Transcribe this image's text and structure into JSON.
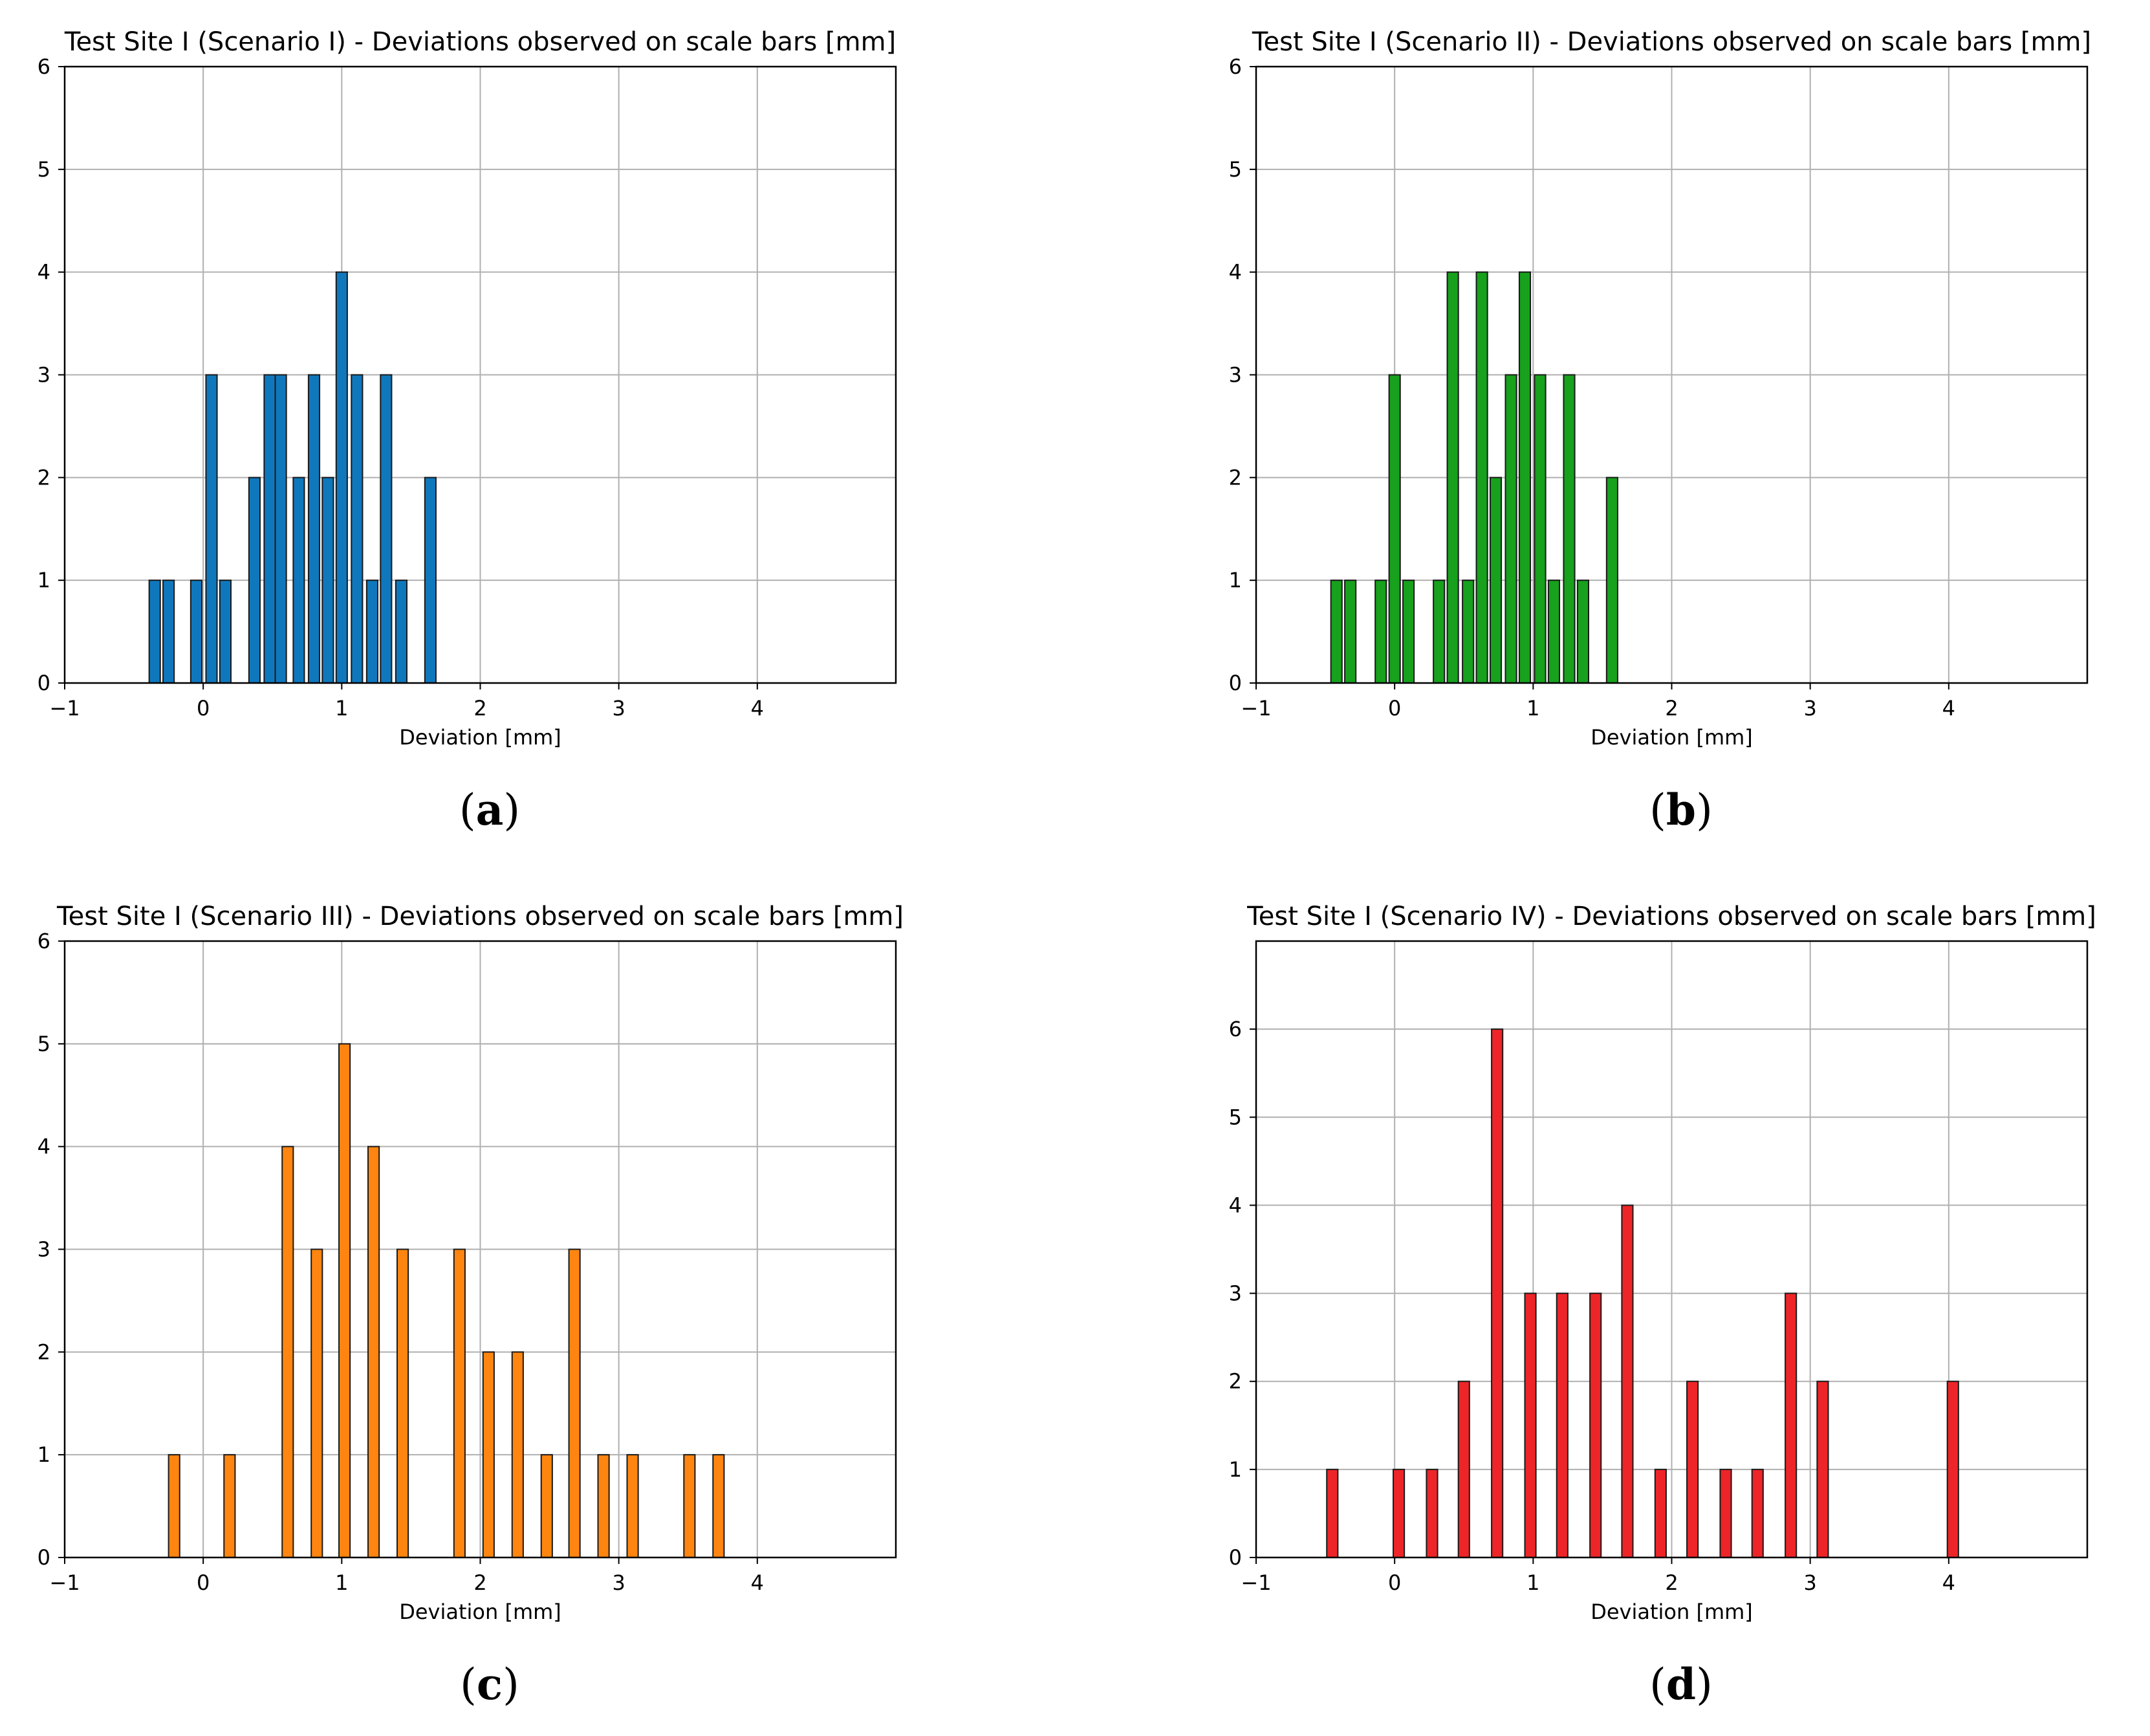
{
  "figure": {
    "panels": [
      {
        "caption_letter": "a"
      },
      {
        "caption_letter": "b"
      },
      {
        "caption_letter": "c"
      },
      {
        "caption_letter": "d"
      }
    ]
  },
  "chart_data": [
    {
      "type": "bar",
      "title": "Test Site I (Scenario I) - Deviations observed on scale bars [mm]",
      "xlabel": "Deviation [mm]",
      "ylabel": "",
      "xlim": [
        -1,
        5
      ],
      "ylim": [
        0,
        6
      ],
      "xticks": [
        -1,
        0,
        1,
        2,
        3,
        4
      ],
      "xtick_labels": [
        "−1",
        "0",
        "1",
        "2",
        "3",
        "4"
      ],
      "yticks": [
        0,
        1,
        2,
        3,
        4,
        5,
        6
      ],
      "ytick_labels": [
        "0",
        "1",
        "2",
        "3",
        "4",
        "5",
        "6"
      ],
      "grid": true,
      "bar_width": 0.08,
      "color": "#0f78bd",
      "x": [
        -0.35,
        -0.25,
        -0.05,
        0.06,
        0.16,
        0.37,
        0.48,
        0.56,
        0.69,
        0.8,
        0.9,
        1.0,
        1.11,
        1.22,
        1.32,
        1.43,
        1.64
      ],
      "values": [
        1,
        1,
        1,
        3,
        1,
        2,
        3,
        3,
        2,
        3,
        2,
        4,
        3,
        1,
        3,
        1,
        2
      ]
    },
    {
      "type": "bar",
      "title": "Test Site I (Scenario II) - Deviations observed on scale bars [mm]",
      "xlabel": "Deviation [mm]",
      "ylabel": "",
      "xlim": [
        -1,
        5
      ],
      "ylim": [
        0,
        6
      ],
      "xticks": [
        -1,
        0,
        1,
        2,
        3,
        4
      ],
      "xtick_labels": [
        "−1",
        "0",
        "1",
        "2",
        "3",
        "4"
      ],
      "yticks": [
        0,
        1,
        2,
        3,
        4,
        5,
        6
      ],
      "ytick_labels": [
        "0",
        "1",
        "2",
        "3",
        "4",
        "5",
        "6"
      ],
      "grid": true,
      "bar_width": 0.08,
      "color": "#17a11d",
      "x": [
        -0.42,
        -0.32,
        -0.1,
        0.0,
        0.1,
        0.32,
        0.42,
        0.53,
        0.63,
        0.73,
        0.84,
        0.94,
        1.05,
        1.15,
        1.26,
        1.36,
        1.57
      ],
      "values": [
        1,
        1,
        1,
        3,
        1,
        1,
        4,
        1,
        4,
        2,
        3,
        4,
        3,
        1,
        3,
        1,
        2
      ]
    },
    {
      "type": "bar",
      "title": "Test Site I (Scenario III) - Deviations observed on scale bars [mm]",
      "xlabel": "Deviation [mm]",
      "ylabel": "",
      "xlim": [
        -1,
        5
      ],
      "ylim": [
        0,
        6
      ],
      "xticks": [
        -1,
        0,
        1,
        2,
        3,
        4
      ],
      "xtick_labels": [
        "−1",
        "0",
        "1",
        "2",
        "3",
        "4"
      ],
      "yticks": [
        0,
        1,
        2,
        3,
        4,
        5,
        6
      ],
      "ytick_labels": [
        "0",
        "1",
        "2",
        "3",
        "4",
        "5",
        "6"
      ],
      "grid": true,
      "bar_width": 0.08,
      "color": "#ff8511",
      "x": [
        -0.21,
        0.19,
        0.61,
        0.82,
        1.02,
        1.23,
        1.44,
        1.85,
        2.06,
        2.27,
        2.48,
        2.68,
        2.89,
        3.1,
        3.51,
        3.72
      ],
      "values": [
        1,
        1,
        4,
        3,
        5,
        4,
        3,
        3,
        2,
        2,
        1,
        3,
        1,
        1,
        1,
        1
      ]
    },
    {
      "type": "bar",
      "title": "Test Site I (Scenario IV) - Deviations observed on scale bars [mm]",
      "xlabel": "Deviation [mm]",
      "ylabel": "",
      "xlim": [
        -1,
        5
      ],
      "ylim": [
        0,
        7
      ],
      "xticks": [
        -1,
        0,
        1,
        2,
        3,
        4
      ],
      "xtick_labels": [
        "−1",
        "0",
        "1",
        "2",
        "3",
        "4"
      ],
      "yticks": [
        0,
        1,
        2,
        3,
        4,
        5,
        6
      ],
      "ytick_labels": [
        "0",
        "1",
        "2",
        "3",
        "4",
        "5",
        "6"
      ],
      "grid": true,
      "bar_width": 0.08,
      "color": "#ee2528",
      "x": [
        -0.45,
        0.03,
        0.27,
        0.5,
        0.74,
        0.98,
        1.21,
        1.45,
        1.68,
        1.92,
        2.15,
        2.39,
        2.62,
        2.86,
        3.09,
        4.03
      ],
      "values": [
        1,
        1,
        1,
        2,
        6,
        3,
        3,
        3,
        4,
        1,
        2,
        1,
        1,
        3,
        2,
        2
      ]
    }
  ]
}
